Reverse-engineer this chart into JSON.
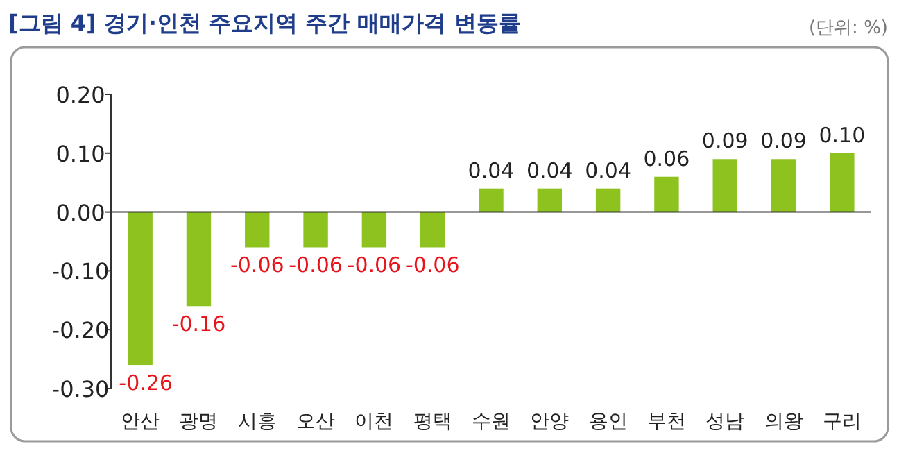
{
  "chart_data": {
    "type": "bar",
    "title": "[그림 4] 경기·인천 주요지역 주간  매매가격 변동률",
    "annotations": [
      "(단위: %)"
    ],
    "categories": [
      "안산",
      "광명",
      "시흥",
      "오산",
      "이천",
      "평택",
      "수원",
      "안양",
      "용인",
      "부천",
      "성남",
      "의왕",
      "구리"
    ],
    "values": [
      -0.26,
      -0.16,
      -0.06,
      -0.06,
      -0.06,
      -0.06,
      0.04,
      0.04,
      0.04,
      0.06,
      0.09,
      0.09,
      0.1
    ],
    "value_labels": [
      "-0.26",
      "-0.16",
      "-0.06",
      "-0.06",
      "-0.06",
      "-0.06",
      "0.04",
      "0.04",
      "0.04",
      "0.06",
      "0.09",
      "0.09",
      "0.10"
    ],
    "color": "#8dc21f",
    "ylim": [
      -0.3,
      0.2
    ],
    "yticks": [
      {
        "value": 0.2,
        "label": "0.20"
      },
      {
        "value": 0.1,
        "label": "0.10"
      },
      {
        "value": 0,
        "label": "0.00"
      },
      {
        "value": -0.1,
        "label": "-0.10"
      },
      {
        "value": -0.2,
        "label": "-0.20"
      },
      {
        "value": -0.3,
        "label": "-0.30"
      }
    ]
  }
}
